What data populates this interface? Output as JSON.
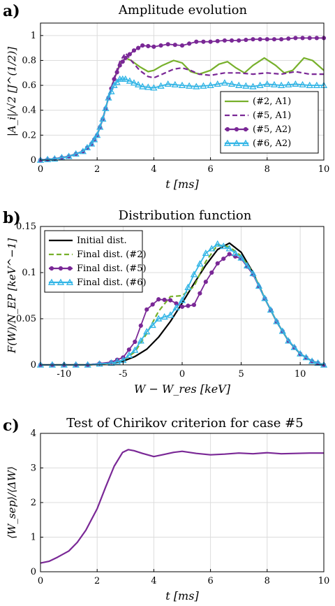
{
  "figure": {
    "panels": [
      {
        "label": "a)",
        "title": "Amplitude evolution"
      },
      {
        "label": "b)",
        "title": "Distribution function"
      },
      {
        "label": "c)",
        "title": "Test of Chirikov criterion for case #5"
      }
    ]
  },
  "colors": {
    "green": "#77b02b",
    "purple": "#7a2896",
    "cyan": "#31b5e6",
    "black": "#000000",
    "grid": "#dcdcdc"
  },
  "chart_data": [
    {
      "type": "line",
      "title": "Amplitude evolution",
      "xlabel": "t [ms]",
      "ylabel": "|A_i|/√2 [J^(1/2)]",
      "xlim": [
        0,
        10
      ],
      "ylim": [
        0,
        1.1
      ],
      "xticks": [
        0,
        2,
        4,
        6,
        8,
        10
      ],
      "yticks": [
        0,
        0.2,
        0.4,
        0.6,
        0.8,
        1
      ],
      "grid": true,
      "legend_position": "bottom-right",
      "series": [
        {
          "name": "(#2, A1)",
          "style": "solid",
          "color": "#77b02b",
          "x": [
            0,
            0.5,
            1,
            1.5,
            1.8,
            2,
            2.2,
            2.4,
            2.6,
            2.8,
            3,
            3.2,
            3.5,
            3.8,
            4,
            4.3,
            4.7,
            5,
            5.3,
            5.6,
            6,
            6.3,
            6.6,
            6.9,
            7.2,
            7.5,
            7.9,
            8.3,
            8.6,
            8.9,
            9.3,
            9.6,
            10
          ],
          "y": [
            0,
            0.01,
            0.03,
            0.07,
            0.13,
            0.2,
            0.33,
            0.5,
            0.65,
            0.77,
            0.82,
            0.8,
            0.75,
            0.71,
            0.72,
            0.76,
            0.8,
            0.78,
            0.71,
            0.69,
            0.72,
            0.77,
            0.79,
            0.74,
            0.7,
            0.76,
            0.82,
            0.76,
            0.7,
            0.72,
            0.82,
            0.8,
            0.72
          ]
        },
        {
          "name": "(#5, A1)",
          "style": "dashed",
          "color": "#7a2896",
          "x": [
            0,
            0.5,
            1,
            1.5,
            1.8,
            2,
            2.2,
            2.4,
            2.6,
            2.8,
            3,
            3.2,
            3.5,
            3.8,
            4,
            4.3,
            4.7,
            5,
            5.3,
            5.6,
            6,
            6.5,
            7,
            7.5,
            8,
            8.5,
            9,
            9.5,
            10
          ],
          "y": [
            0,
            0.01,
            0.03,
            0.07,
            0.13,
            0.2,
            0.33,
            0.5,
            0.66,
            0.79,
            0.86,
            0.8,
            0.72,
            0.67,
            0.66,
            0.69,
            0.73,
            0.74,
            0.72,
            0.69,
            0.68,
            0.7,
            0.7,
            0.69,
            0.7,
            0.69,
            0.71,
            0.69,
            0.69
          ]
        },
        {
          "name": "(#5, A2)",
          "style": "dot-marker",
          "color": "#7a2896",
          "x": [
            0,
            0.5,
            1,
            1.5,
            1.8,
            2,
            2.2,
            2.4,
            2.6,
            2.8,
            3,
            3.3,
            3.6,
            4,
            4.5,
            5,
            5.5,
            6,
            6.5,
            7,
            7.5,
            8,
            8.5,
            9,
            9.5,
            10
          ],
          "y": [
            0,
            0.01,
            0.03,
            0.07,
            0.13,
            0.2,
            0.33,
            0.5,
            0.65,
            0.76,
            0.82,
            0.88,
            0.92,
            0.91,
            0.93,
            0.92,
            0.95,
            0.95,
            0.96,
            0.96,
            0.97,
            0.97,
            0.97,
            0.98,
            0.98,
            0.98
          ]
        },
        {
          "name": "(#6, A2)",
          "style": "triangle-marker",
          "color": "#31b5e6",
          "x": [
            0,
            0.5,
            1,
            1.5,
            1.8,
            2,
            2.2,
            2.4,
            2.6,
            2.8,
            3,
            3.3,
            3.6,
            4,
            4.5,
            5,
            5.5,
            6,
            6.5,
            7,
            7.5,
            8,
            8.5,
            9,
            9.5,
            10
          ],
          "y": [
            0,
            0.01,
            0.03,
            0.07,
            0.13,
            0.2,
            0.33,
            0.5,
            0.6,
            0.65,
            0.65,
            0.62,
            0.59,
            0.58,
            0.61,
            0.6,
            0.59,
            0.6,
            0.62,
            0.6,
            0.59,
            0.61,
            0.6,
            0.61,
            0.6,
            0.6
          ]
        }
      ]
    },
    {
      "type": "line",
      "title": "Distribution function",
      "xlabel": "W − W_res [keV]",
      "ylabel": "F(W)/N_EP [keV^−1]",
      "xlim": [
        -12,
        12
      ],
      "ylim": [
        0,
        0.15
      ],
      "xticks": [
        -10,
        -5,
        0,
        5,
        10
      ],
      "yticks": [
        0,
        0.05,
        0.1,
        0.15
      ],
      "grid": true,
      "legend_position": "top-left",
      "series": [
        {
          "name": "Initial dist.",
          "style": "solid",
          "color": "#000000",
          "x": [
            -12,
            -10,
            -8,
            -6,
            -5,
            -4,
            -3,
            -2,
            -1,
            0,
            1,
            2,
            3,
            4,
            5,
            6,
            7,
            8,
            9,
            10,
            11,
            12
          ],
          "y": [
            0,
            0,
            0,
            0.002,
            0.004,
            0.009,
            0.017,
            0.03,
            0.047,
            0.067,
            0.088,
            0.108,
            0.125,
            0.132,
            0.122,
            0.1,
            0.072,
            0.047,
            0.026,
            0.012,
            0.004,
            0
          ]
        },
        {
          "name": "Final dist. (#2)",
          "style": "dashed",
          "color": "#77b02b",
          "x": [
            -12,
            -10,
            -8,
            -6,
            -5,
            -4,
            -3,
            -2,
            -1,
            0,
            1,
            2,
            3,
            4,
            5,
            6,
            7,
            8,
            9,
            10,
            11,
            12
          ],
          "y": [
            0,
            0,
            0,
            0.002,
            0.005,
            0.014,
            0.034,
            0.058,
            0.074,
            0.075,
            0.085,
            0.112,
            0.13,
            0.128,
            0.118,
            0.1,
            0.072,
            0.047,
            0.026,
            0.012,
            0.004,
            0
          ]
        },
        {
          "name": "Final dist. (#5)",
          "style": "dot-marker",
          "color": "#7a2896",
          "x": [
            -12,
            -10,
            -8,
            -6,
            -5,
            -4,
            -3,
            -2,
            -1,
            0,
            1,
            2,
            3,
            4,
            5,
            6,
            7,
            8,
            9,
            10,
            11,
            12
          ],
          "y": [
            0,
            0,
            0,
            0.003,
            0.008,
            0.025,
            0.06,
            0.071,
            0.07,
            0.063,
            0.065,
            0.09,
            0.11,
            0.12,
            0.115,
            0.098,
            0.072,
            0.047,
            0.026,
            0.012,
            0.004,
            0
          ]
        },
        {
          "name": "Final dist. (#6)",
          "style": "triangle-marker",
          "color": "#31b5e6",
          "x": [
            -12,
            -10,
            -8,
            -6,
            -5,
            -4,
            -3,
            -2,
            -1,
            0,
            1,
            2,
            3,
            4,
            5,
            6,
            7,
            8,
            9,
            10,
            11,
            12
          ],
          "y": [
            0,
            0,
            0,
            0.002,
            0.005,
            0.016,
            0.036,
            0.05,
            0.054,
            0.07,
            0.098,
            0.121,
            0.131,
            0.126,
            0.116,
            0.099,
            0.072,
            0.047,
            0.026,
            0.012,
            0.004,
            0
          ]
        }
      ]
    },
    {
      "type": "line",
      "title": "Test of Chirikov criterion for case #5",
      "xlabel": "t [ms]",
      "ylabel": "⟨W_sep⟩/⟨ΔW⟩",
      "xlim": [
        0,
        10
      ],
      "ylim": [
        0,
        4
      ],
      "xticks": [
        0,
        2,
        4,
        6,
        8,
        10
      ],
      "yticks": [
        0,
        1,
        2,
        3,
        4
      ],
      "grid": true,
      "series": [
        {
          "name": "",
          "style": "solid",
          "color": "#7a2896",
          "x": [
            0,
            0.3,
            0.6,
            1,
            1.3,
            1.6,
            2,
            2.3,
            2.6,
            2.9,
            3.1,
            3.3,
            3.6,
            4,
            4.3,
            4.7,
            5,
            5.5,
            6,
            6.5,
            7,
            7.5,
            8,
            8.5,
            9,
            9.5,
            10
          ],
          "y": [
            0.25,
            0.3,
            0.42,
            0.6,
            0.85,
            1.2,
            1.82,
            2.45,
            3.05,
            3.45,
            3.53,
            3.5,
            3.42,
            3.33,
            3.38,
            3.45,
            3.48,
            3.42,
            3.38,
            3.4,
            3.43,
            3.41,
            3.44,
            3.41,
            3.42,
            3.43,
            3.43
          ]
        }
      ]
    }
  ]
}
